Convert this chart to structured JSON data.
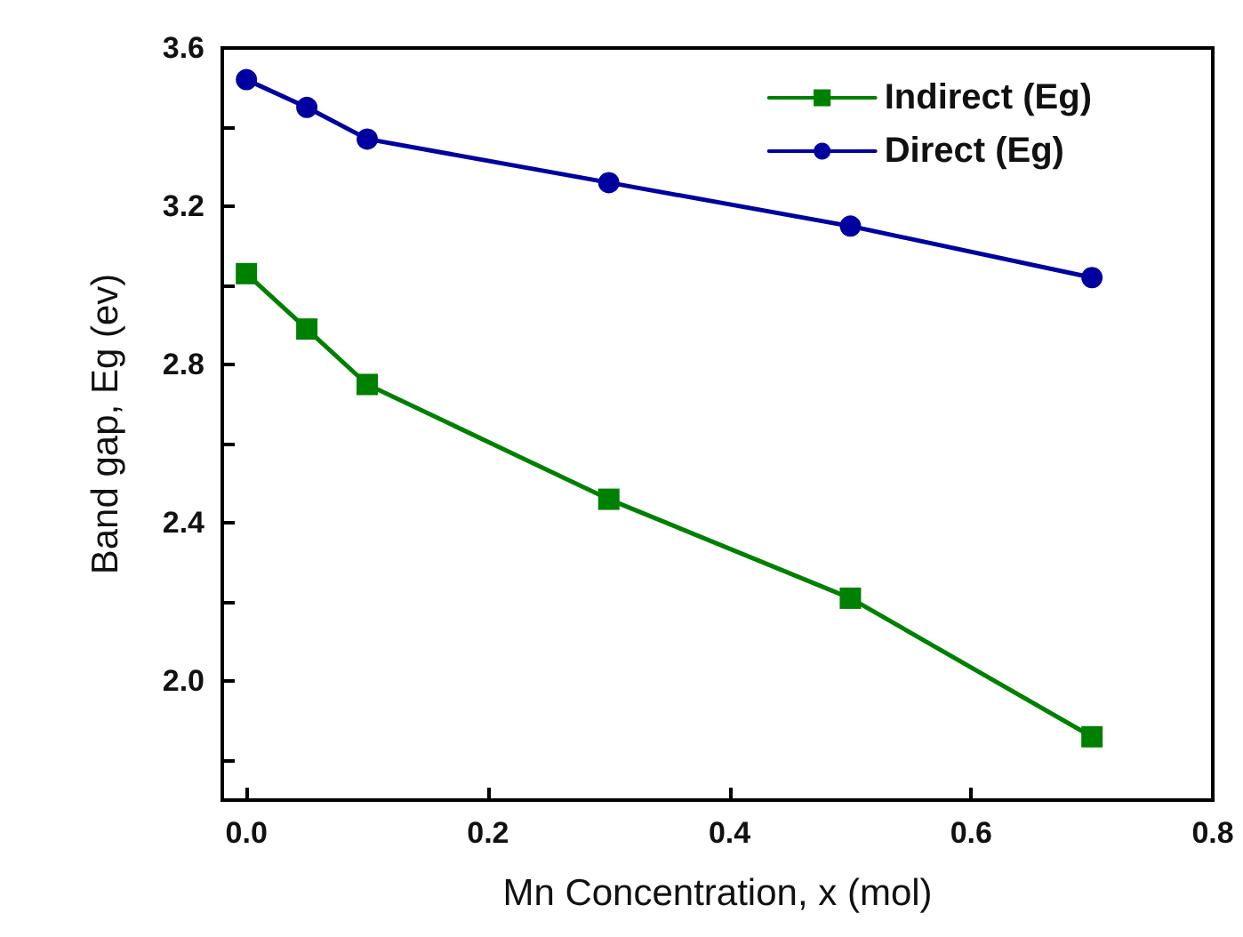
{
  "chart_data": {
    "type": "line",
    "xlabel": "Mn Concentration, x (mol)",
    "ylabel": "Band gap, Eg (ev)",
    "xlim": [
      -0.02,
      0.8
    ],
    "ylim": [
      1.7,
      3.6
    ],
    "xticks": [
      {
        "value": 0,
        "label": "0.0"
      },
      {
        "value": 0.2,
        "label": "0.2"
      },
      {
        "value": 0.4,
        "label": "0.4"
      },
      {
        "value": 0.6,
        "label": "0.6"
      },
      {
        "value": 0.8,
        "label": "0.8"
      }
    ],
    "yticks": [
      {
        "value": 1.8,
        "label": null
      },
      {
        "value": 2.0,
        "label": "2.0"
      },
      {
        "value": 2.2,
        "label": null
      },
      {
        "value": 2.4,
        "label": "2.4"
      },
      {
        "value": 2.6,
        "label": null
      },
      {
        "value": 2.8,
        "label": "2.8"
      },
      {
        "value": 3.0,
        "label": null
      },
      {
        "value": 3.2,
        "label": "3.2"
      },
      {
        "value": 3.4,
        "label": null
      },
      {
        "value": 3.6,
        "label": "3.6"
      }
    ],
    "x": [
      0,
      0.05,
      0.1,
      0.3,
      0.5,
      0.7
    ],
    "series": [
      {
        "name": "Indirect (Eg)",
        "color": "#008000",
        "marker": "square",
        "values": [
          3.03,
          2.89,
          2.75,
          2.46,
          2.21,
          1.86
        ]
      },
      {
        "name": "Direct (Eg)",
        "color": "#0000a0",
        "marker": "circle",
        "values": [
          3.52,
          3.45,
          3.37,
          3.26,
          3.15,
          3.02
        ]
      }
    ],
    "grid": false,
    "legend": "top right",
    "line_style": "solid"
  }
}
